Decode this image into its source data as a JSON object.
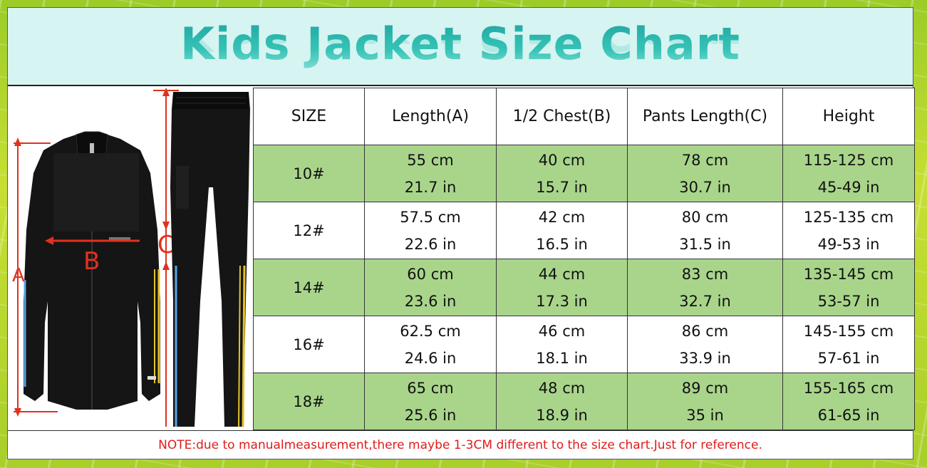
{
  "title": "Kids Jacket Size Chart",
  "figure": {
    "label_a": "A",
    "label_b": "B",
    "label_c": "C"
  },
  "table": {
    "headers": [
      "SIZE",
      "Length(A)",
      "1/2 Chest(B)",
      "Pants Length(C)",
      "Height"
    ],
    "rows": [
      {
        "size": "10#",
        "length_cm": "55 cm",
        "length_in": "21.7 in",
        "chest_cm": "40 cm",
        "chest_in": "15.7 in",
        "pants_cm": "78 cm",
        "pants_in": "30.7 in",
        "height_cm": "115-125 cm",
        "height_in": "45-49 in"
      },
      {
        "size": "12#",
        "length_cm": "57.5 cm",
        "length_in": "22.6 in",
        "chest_cm": "42 cm",
        "chest_in": "16.5 in",
        "pants_cm": "80 cm",
        "pants_in": "31.5 in",
        "height_cm": "125-135 cm",
        "height_in": "49-53 in"
      },
      {
        "size": "14#",
        "length_cm": "60 cm",
        "length_in": "23.6 in",
        "chest_cm": "44 cm",
        "chest_in": "17.3 in",
        "pants_cm": "83 cm",
        "pants_in": "32.7 in",
        "height_cm": "135-145 cm",
        "height_in": "53-57 in"
      },
      {
        "size": "16#",
        "length_cm": "62.5 cm",
        "length_in": "24.6 in",
        "chest_cm": "46 cm",
        "chest_in": "18.1 in",
        "pants_cm": "86 cm",
        "pants_in": "33.9 in",
        "height_cm": "145-155 cm",
        "height_in": "57-61 in"
      },
      {
        "size": "18#",
        "length_cm": "65 cm",
        "length_in": "25.6 in",
        "chest_cm": "48 cm",
        "chest_in": "18.9 in",
        "pants_cm": "89 cm",
        "pants_in": "35 in",
        "height_cm": "155-165 cm",
        "height_in": "61-65 in"
      }
    ]
  },
  "note": "NOTE:due to manualmeasurement,there maybe 1-3CM different to the size chart.Just for reference.",
  "colors": {
    "title_teal": "#2bb3ab",
    "title_band": "#d6f4f1",
    "row_green": "#a9d58b",
    "note_red": "#e01a1a",
    "measure_red": "#e0321e"
  }
}
